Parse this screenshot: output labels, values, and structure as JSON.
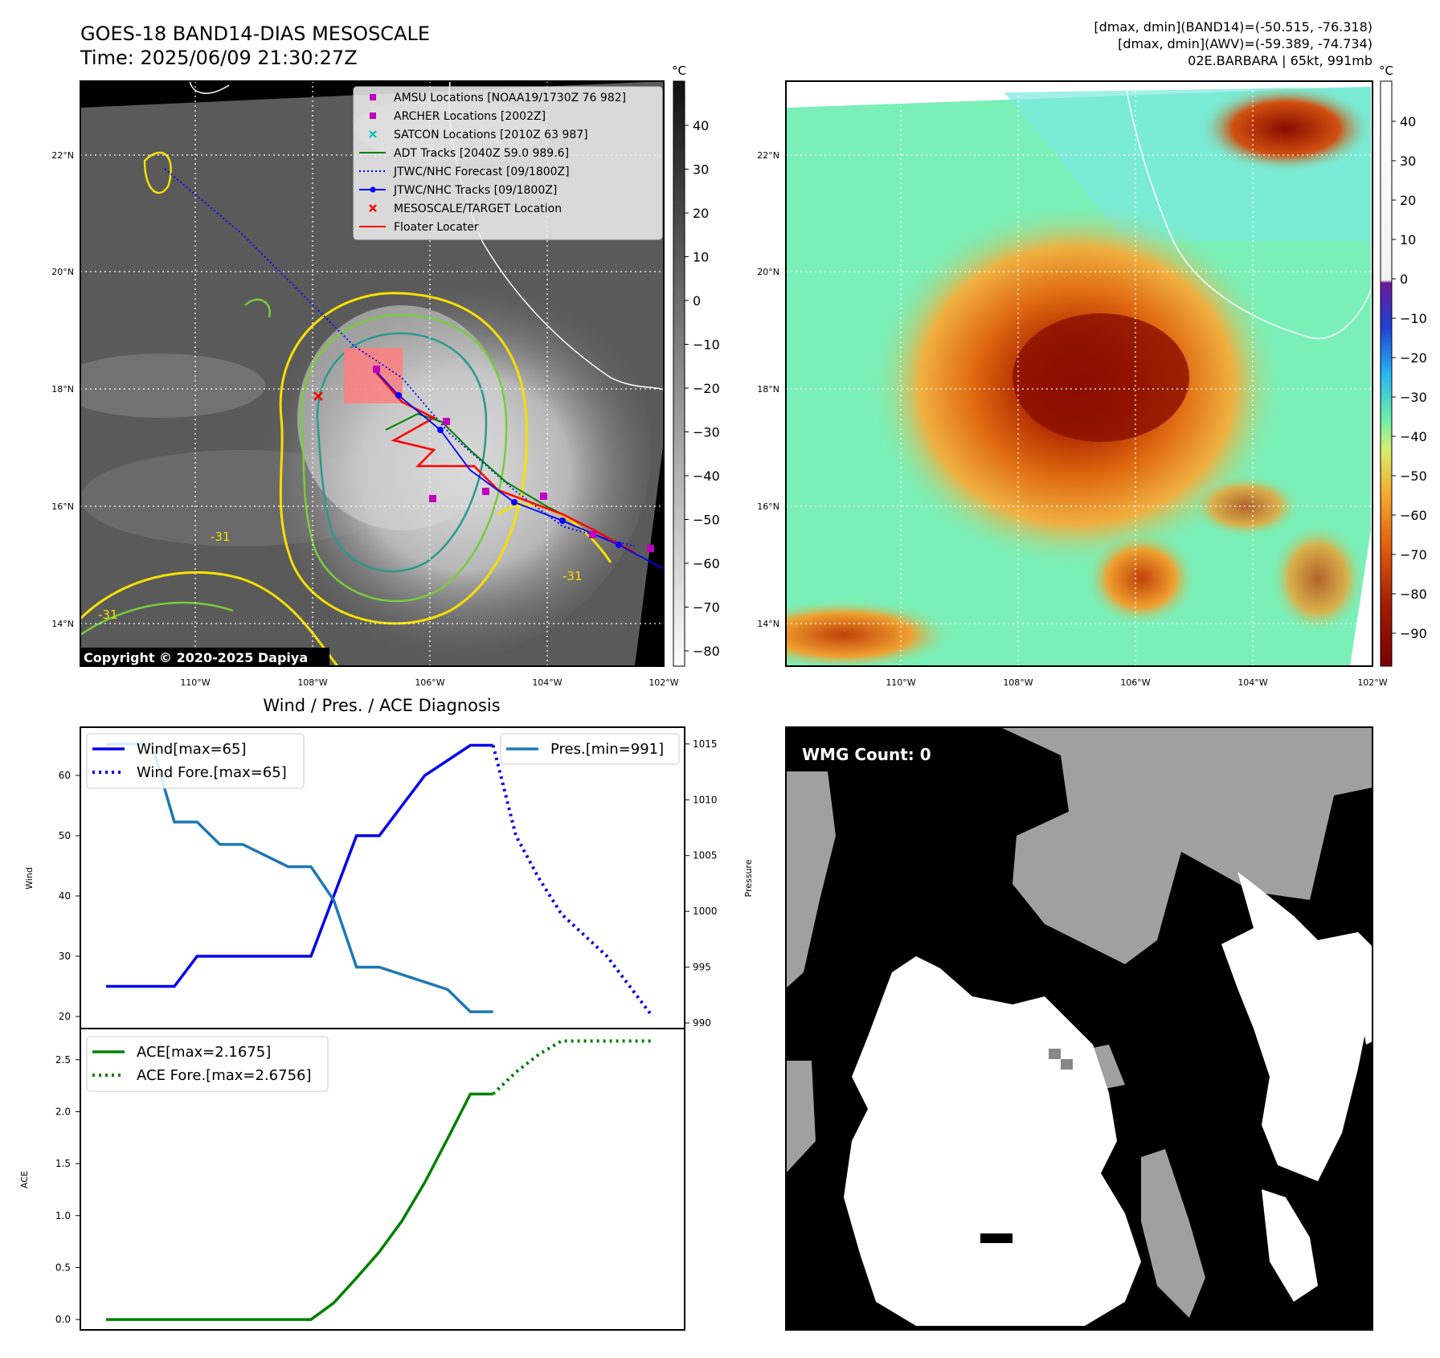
{
  "header": {
    "title_line1": "GOES-18 BAND14-DIAS MESOSCALE",
    "title_line2": "Time: 2025/06/09 21:30:27Z",
    "info_line1": "[dmax, dmin](BAND14)=(-50.515, -76.318)",
    "info_line2": "[dmax, dmin](AWV)=(-59.389, -74.734)",
    "info_line3": "02E.BARBARA | 65kt, 991mb"
  },
  "colors": {
    "wind": "#0000ee",
    "pressure": "#1f77b4",
    "ace": "#008000",
    "amsu": "#bf00bf",
    "archer": "#bf00bf",
    "satcon": "#00bfbf",
    "adt": "#008000",
    "track": "#0000ff",
    "target": "#ff0000",
    "floater": "#ff0000"
  },
  "map_ir": {
    "colorbar_unit": "°C",
    "colorbar_ticks": [
      "40",
      "30",
      "20",
      "10",
      "0",
      "−10",
      "−20",
      "−30",
      "−40",
      "−50",
      "−60",
      "−70",
      "−80"
    ],
    "lat_ticks": [
      "22°N",
      "20°N",
      "18°N",
      "16°N",
      "14°N"
    ],
    "lon_ticks": [
      "110°W",
      "108°W",
      "106°W",
      "104°W",
      "102°W"
    ],
    "contour_label": "-31",
    "copyright": "Copyright © 2020-2025 Dapiya",
    "legend": [
      {
        "label": "AMSU Locations [NOAA19/1730Z 76 982]",
        "icon": "square-marker"
      },
      {
        "label": "ARCHER Locations [2002Z]",
        "icon": "square-marker"
      },
      {
        "label": "SATCON Locations [2010Z 63 987]",
        "icon": "x-marker"
      },
      {
        "label": "ADT Tracks [2040Z 59.0 989.6]",
        "icon": "solid-line"
      },
      {
        "label": "JTWC/NHC Forecast [09/1800Z]",
        "icon": "dotted-line"
      },
      {
        "label": "JTWC/NHC Tracks [09/1800Z]",
        "icon": "line-dot"
      },
      {
        "label": "MESOSCALE/TARGET Location",
        "icon": "x-marker"
      },
      {
        "label": "Floater Locater",
        "icon": "solid-line"
      }
    ]
  },
  "map_awv": {
    "colorbar_unit": "°C",
    "colorbar_ticks": [
      "40",
      "30",
      "20",
      "10",
      "0",
      "−10",
      "−20",
      "−30",
      "−40",
      "−50",
      "−60",
      "−70",
      "−80",
      "−90"
    ],
    "lat_ticks": [
      "22°N",
      "20°N",
      "18°N",
      "16°N",
      "14°N"
    ],
    "lon_ticks": [
      "110°W",
      "108°W",
      "106°W",
      "104°W",
      "102°W"
    ]
  },
  "wmg": {
    "count_label": "WMG Count: 0"
  },
  "chart_data": [
    {
      "type": "line",
      "title": "Wind / Pres. / ACE Diagnosis",
      "ylabel": "Wind",
      "ylabel_right": "Pressure",
      "ylim": [
        18,
        68
      ],
      "ylim_right": [
        989.5,
        1016.5
      ],
      "yticks": [
        20,
        30,
        40,
        50,
        60
      ],
      "yticks_right": [
        990,
        995,
        1000,
        1005,
        1010,
        1015
      ],
      "legend_left": [
        "Wind[max=65]",
        "Wind Fore.[max=65]"
      ],
      "legend_right": [
        "Pres.[min=991]"
      ],
      "series": [
        {
          "name": "Wind[max=65]",
          "style": "solid",
          "x": [
            0,
            3,
            4,
            9,
            11,
            12,
            14,
            16,
            17
          ],
          "values": [
            25,
            25,
            30,
            30,
            50,
            50,
            60,
            65,
            65
          ]
        },
        {
          "name": "Wind Fore.[max=65]",
          "style": "dotted",
          "x": [
            17,
            18,
            19,
            20,
            22,
            24
          ],
          "values": [
            65,
            50,
            43,
            37,
            30,
            20
          ]
        },
        {
          "name": "Pres.[min=991]",
          "style": "solid",
          "axis": "right",
          "x": [
            0,
            2,
            3,
            4,
            5,
            6,
            8,
            9,
            10,
            11,
            12,
            15,
            16,
            17
          ],
          "values": [
            1015,
            1015,
            1008,
            1008,
            1006,
            1006,
            1004,
            1004,
            1001,
            995,
            995,
            993,
            991,
            991
          ]
        }
      ]
    },
    {
      "type": "line",
      "ylabel": "ACE",
      "ylim": [
        -0.1,
        2.8
      ],
      "yticks": [
        "0.0",
        "0.5",
        "1.0",
        "1.5",
        "2.0",
        "2.5"
      ],
      "legend": [
        "ACE[max=2.1675]",
        "ACE Fore.[max=2.6756]"
      ],
      "series": [
        {
          "name": "ACE[max=2.1675]",
          "style": "solid",
          "x": [
            0,
            9,
            10,
            11,
            12,
            13,
            14,
            15,
            16,
            17
          ],
          "values": [
            0,
            0,
            0.16,
            0.4,
            0.65,
            0.95,
            1.32,
            1.74,
            2.17,
            2.17
          ]
        },
        {
          "name": "ACE Fore.[max=2.6756]",
          "style": "dotted",
          "x": [
            17,
            18,
            19,
            20,
            22,
            24
          ],
          "values": [
            2.17,
            2.38,
            2.55,
            2.68,
            2.68,
            2.68
          ]
        }
      ]
    }
  ]
}
